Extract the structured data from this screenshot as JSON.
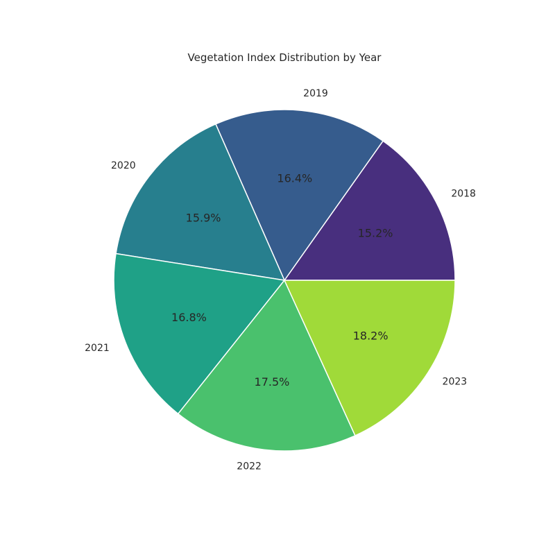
{
  "chart_data": {
    "type": "pie",
    "title": "Vegetation Index Distribution by Year",
    "categories": [
      "2018",
      "2019",
      "2020",
      "2021",
      "2022",
      "2023"
    ],
    "values": [
      15.2,
      16.4,
      15.9,
      16.8,
      17.5,
      18.2
    ],
    "percent_labels": [
      "15.2%",
      "16.4%",
      "15.9%",
      "16.8%",
      "17.5%",
      "18.2%"
    ],
    "colors": [
      "#482f7e",
      "#365c8d",
      "#277f8e",
      "#1fa187",
      "#4ac16d",
      "#a0da39"
    ],
    "start_angle_deg": 0,
    "direction": "counterclockwise",
    "legend": "none"
  }
}
